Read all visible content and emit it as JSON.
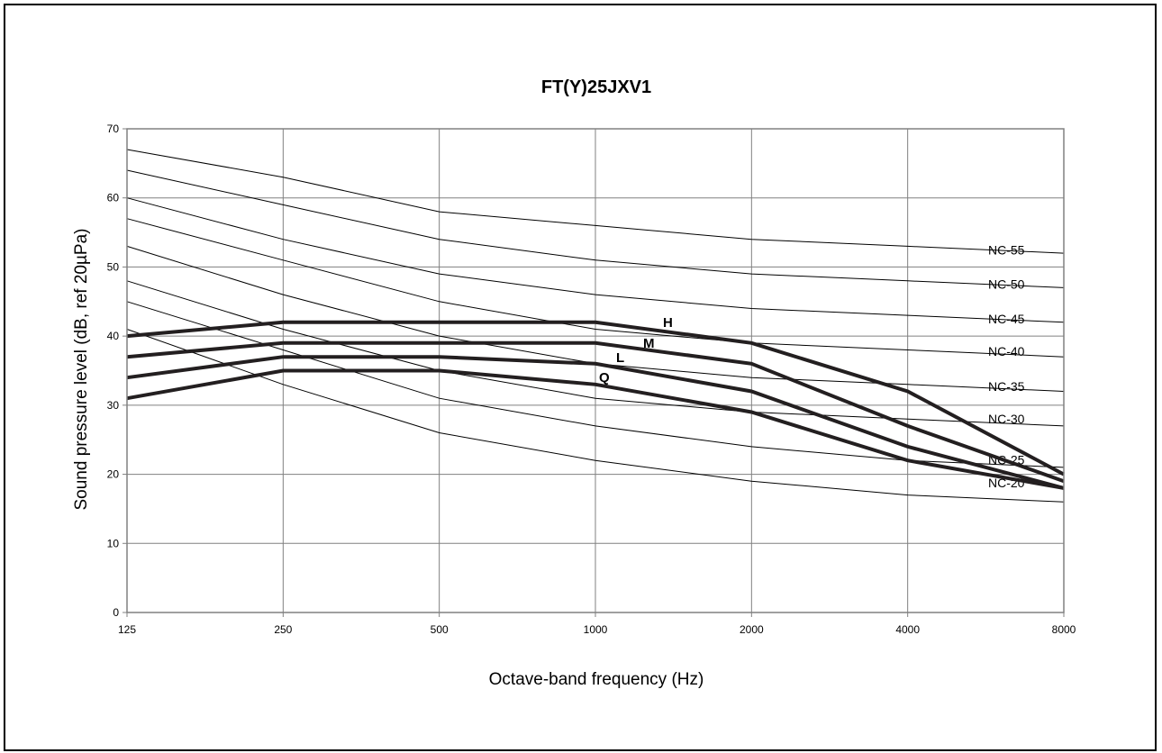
{
  "chart_data": {
    "type": "line",
    "title": "FT(Y)25JXV1",
    "xlabel": "Octave-band frequency (Hz)",
    "ylabel": "Sound pressure level (dB, ref 20µPa)",
    "x": [
      "125",
      "250",
      "500",
      "1000",
      "2000",
      "4000",
      "8000"
    ],
    "ylim": [
      0,
      70
    ],
    "yticks": [
      "0",
      "10",
      "20",
      "30",
      "40",
      "50",
      "60",
      "70"
    ],
    "grid": true,
    "reference_curves": [
      {
        "name": "NC-55",
        "values": [
          67,
          63,
          58,
          56,
          54,
          53,
          52
        ]
      },
      {
        "name": "NC-50",
        "values": [
          64,
          59,
          54,
          51,
          49,
          48,
          47
        ]
      },
      {
        "name": "NC-45",
        "values": [
          60,
          54,
          49,
          46,
          44,
          43,
          42
        ]
      },
      {
        "name": "NC-40",
        "values": [
          57,
          51,
          45,
          41,
          39,
          38,
          37
        ]
      },
      {
        "name": "NC-35",
        "values": [
          53,
          46,
          40,
          36,
          34,
          33,
          32
        ]
      },
      {
        "name": "NC-30",
        "values": [
          48,
          41,
          35,
          31,
          29,
          28,
          27
        ]
      },
      {
        "name": "NC-25",
        "values": [
          45,
          38,
          31,
          27,
          24,
          22,
          21
        ]
      },
      {
        "name": "NC-20",
        "values": [
          41,
          33,
          26,
          22,
          19,
          17,
          16
        ]
      }
    ],
    "series": [
      {
        "name": "H",
        "values": [
          40,
          42,
          42,
          42,
          39,
          32,
          20
        ]
      },
      {
        "name": "M",
        "values": [
          37,
          39,
          39,
          39,
          36,
          27,
          19
        ]
      },
      {
        "name": "L",
        "values": [
          34,
          37,
          37,
          36,
          32,
          24,
          18
        ]
      },
      {
        "name": "Q",
        "values": [
          31,
          35,
          35,
          33,
          29,
          22,
          18
        ]
      }
    ]
  }
}
